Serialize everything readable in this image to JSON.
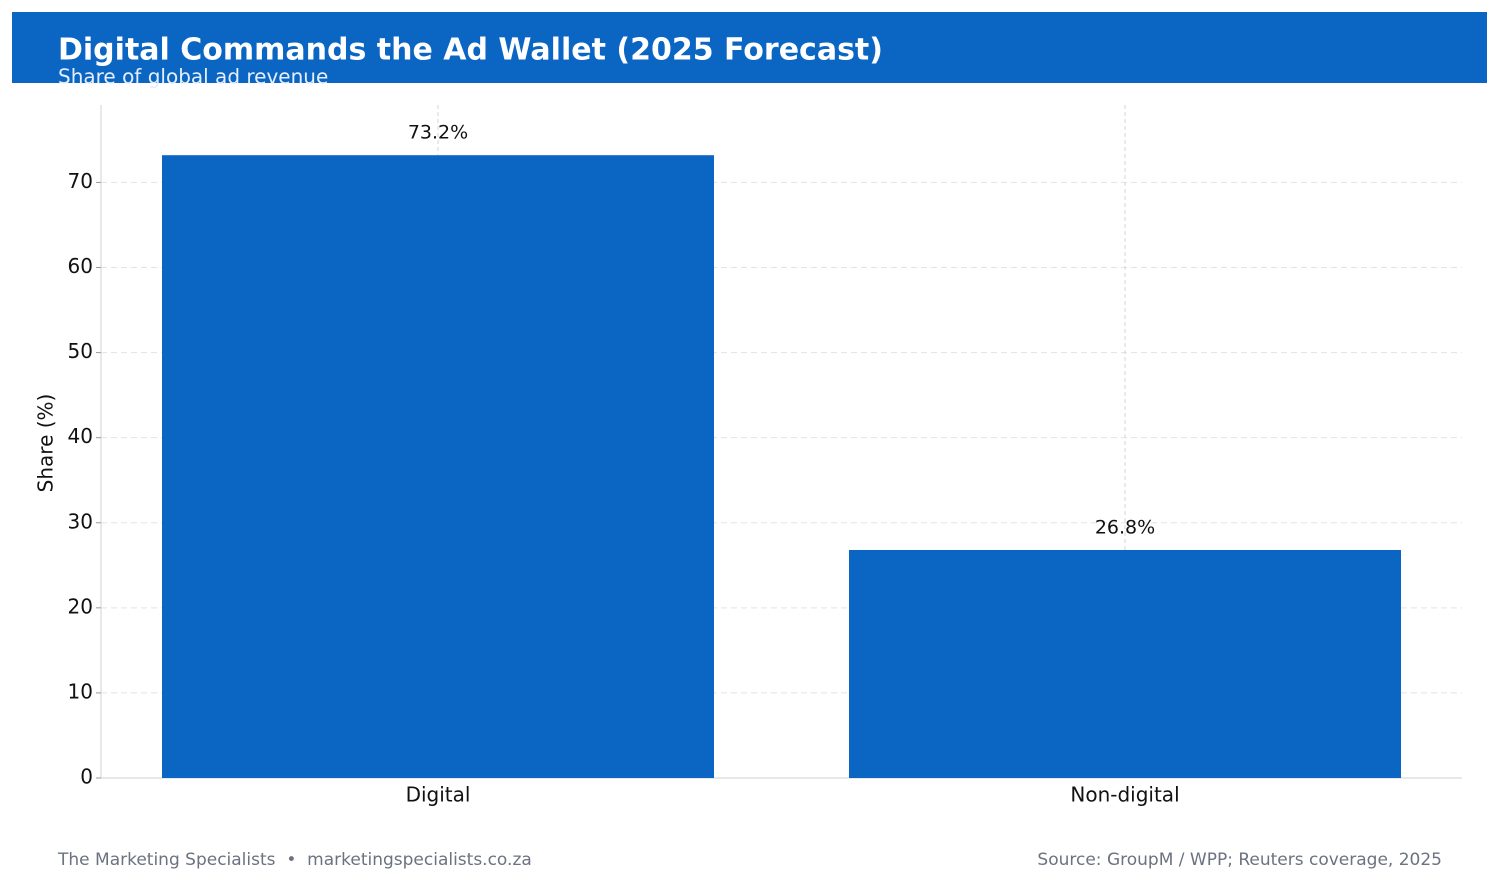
{
  "chart_data": {
    "type": "bar",
    "title": "Digital Commands the Ad Wallet (2025 Forecast)",
    "subtitle": "Share of global ad revenue",
    "y_label": "Share (%)",
    "categories": [
      "Digital",
      "Non-digital"
    ],
    "values": [
      73.2,
      26.8
    ],
    "value_labels": [
      "73.2%",
      "26.8%"
    ],
    "color": "#0b66c3",
    "ylim": [
      0,
      79.1
    ],
    "yticks": [
      0,
      10,
      20,
      30,
      40,
      50,
      60,
      70
    ],
    "grid": true,
    "footer": "The Marketing Specialists  •  marketingspecialists.co.za",
    "source": "Source: GroupM / WPP; Reuters coverage, 2025"
  }
}
